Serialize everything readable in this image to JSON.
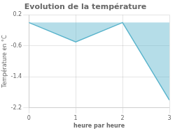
{
  "chart_data": {
    "type": "area",
    "title": "Evolution de la température",
    "xlabel": "heure par heure",
    "ylabel": "Température en °C",
    "x": [
      0,
      1,
      2,
      3
    ],
    "values": [
      0.0,
      -0.5,
      0.0,
      -2.0
    ],
    "color": "#5ab4cc",
    "xlim": [
      0,
      3
    ],
    "ylim": [
      -2.2,
      0.2
    ],
    "xticks": [
      0,
      1,
      2,
      3
    ],
    "yticks": [
      0.2,
      -0.6,
      -1.4,
      -2.2
    ],
    "grid": true
  }
}
